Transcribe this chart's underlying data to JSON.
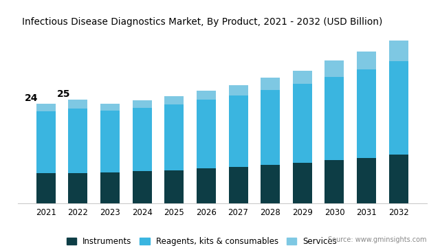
{
  "years": [
    2021,
    2022,
    2023,
    2024,
    2025,
    2026,
    2027,
    2028,
    2029,
    2030,
    2031,
    2032
  ],
  "instruments": [
    7.2,
    7.3,
    7.5,
    7.7,
    8.0,
    8.4,
    8.8,
    9.3,
    9.8,
    10.4,
    11.0,
    11.7
  ],
  "reagents": [
    15.0,
    15.5,
    14.8,
    15.3,
    15.8,
    16.6,
    17.2,
    18.0,
    18.9,
    20.1,
    21.3,
    22.6
  ],
  "services": [
    1.8,
    2.2,
    1.7,
    1.8,
    2.0,
    2.2,
    2.5,
    2.9,
    3.3,
    3.9,
    4.3,
    4.9
  ],
  "annotations": {
    "2021": "24",
    "2022": "25"
  },
  "colors": {
    "instruments": "#0d3d45",
    "reagents": "#3ab5e0",
    "services": "#7ec8e3"
  },
  "title": "Infectious Disease Diagnostics Market, By Product, 2021 - 2032 (USD Billion)",
  "legend_labels": [
    "Instruments",
    "Reagents, kits & consumables",
    "Services"
  ],
  "source_text": "Source: www.gminsights.com",
  "background_color": "#ffffff",
  "ylim": [
    0,
    40
  ],
  "title_fontsize": 9.8
}
